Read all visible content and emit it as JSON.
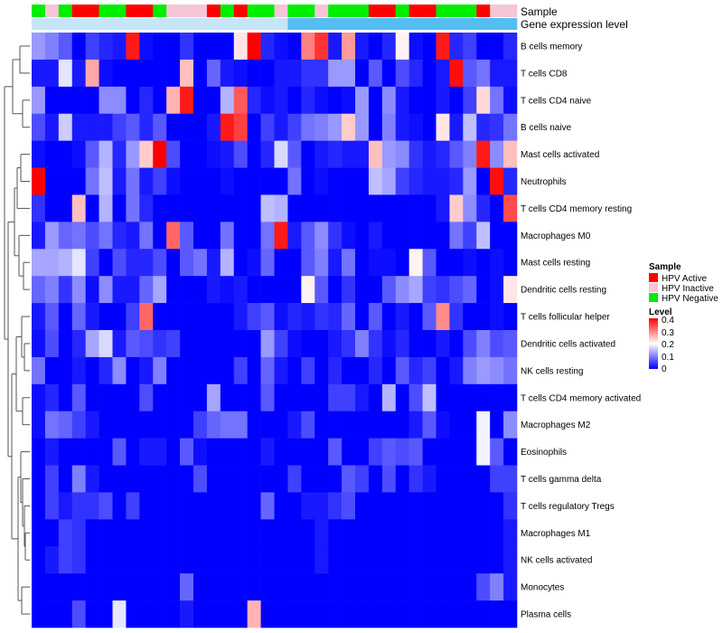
{
  "chart_data": {
    "type": "heatmap",
    "title": "",
    "colorscale": {
      "low": "#0000ff",
      "mid": "#ffffff",
      "high": "#ff0000",
      "min": 0,
      "mid_value": 0.2,
      "max": 0.4
    },
    "annotation_tracks": [
      {
        "name": "Sample"
      },
      {
        "name": "Gene expression level"
      }
    ],
    "sample_legend": {
      "title": "Sample",
      "items": [
        {
          "label": "HPV Active",
          "color": "#ff0000"
        },
        {
          "label": "HPV Inactive",
          "color": "#f5c6d6"
        },
        {
          "label": "HPV Negative",
          "color": "#00ee00"
        }
      ]
    },
    "level_legend": {
      "title": "Level",
      "ticks": [
        0.4,
        0.3,
        0.2,
        0.1,
        0
      ]
    },
    "sample_groups": [
      "N",
      "I",
      "N",
      "A",
      "A",
      "N",
      "N",
      "A",
      "A",
      "N",
      "I",
      "I",
      "I",
      "A",
      "N",
      "A",
      "N",
      "N",
      "I",
      "N",
      "N",
      "I",
      "N",
      "N",
      "N",
      "A",
      "A",
      "N",
      "A",
      "A",
      "N",
      "N",
      "N",
      "A",
      "I",
      "I"
    ],
    "expression_levels": [
      0,
      0,
      0,
      0,
      0,
      0,
      0,
      0,
      0,
      0,
      0,
      0,
      0,
      0,
      0,
      0,
      0,
      0,
      0,
      1,
      1,
      1,
      1,
      1,
      1,
      1,
      1,
      1,
      1,
      1,
      1,
      1,
      1,
      1,
      1,
      1
    ],
    "rows": [
      "B cells memory",
      "T cells CD8",
      "T cells CD4 naive",
      "B cells naive",
      "Mast cells activated",
      "Neutrophils",
      "T cells CD4 memory resting",
      "Macrophages M0",
      "Mast cells resting",
      "Dendritic cells resting",
      "T cells follicular helper",
      "Dendritic cells activated",
      "NK cells resting",
      "T cells CD4 memory activated",
      "Macrophages M2",
      "Eosinophils",
      "T cells gamma delta",
      "T cells regulatory  Tregs",
      "Macrophages M1",
      "NK cells activated",
      "Monocytes",
      "Plasma cells"
    ],
    "values": [
      [
        0.12,
        0.1,
        0.07,
        0.0,
        0.05,
        0.03,
        0.02,
        0.38,
        0.01,
        0.0,
        0.0,
        0.04,
        0.0,
        0.0,
        0.0,
        0.22,
        0.4,
        0.03,
        0.01,
        0.0,
        0.3,
        0.36,
        0.02,
        0.28,
        0.02,
        0.0,
        0.03,
        0.21,
        0.01,
        0.0,
        0.38,
        0.03,
        0.05,
        0.0,
        0.0,
        0.03
      ],
      [
        0.02,
        0.02,
        0.18,
        0.02,
        0.27,
        0.01,
        0.0,
        0.0,
        0.0,
        0.0,
        0.0,
        0.25,
        0.0,
        0.08,
        0.02,
        0.01,
        0.0,
        0.0,
        0.02,
        0.02,
        0.04,
        0.04,
        0.12,
        0.12,
        0.0,
        0.07,
        0.0,
        0.06,
        0.03,
        0.0,
        0.02,
        0.39,
        0.07,
        0.09,
        0.02,
        0.02
      ],
      [
        0.12,
        0.0,
        0.0,
        0.0,
        0.0,
        0.11,
        0.11,
        0.0,
        0.03,
        0.0,
        0.26,
        0.38,
        0.0,
        0.0,
        0.14,
        0.33,
        0.03,
        0.01,
        0.02,
        0.0,
        0.03,
        0.01,
        0.0,
        0.01,
        0.12,
        0.0,
        0.11,
        0.02,
        0.0,
        0.0,
        0.02,
        0.0,
        0.05,
        0.23,
        0.09,
        0.01
      ],
      [
        0.06,
        0.02,
        0.16,
        0.02,
        0.02,
        0.02,
        0.05,
        0.07,
        0.03,
        0.07,
        0.0,
        0.0,
        0.0,
        0.02,
        0.38,
        0.35,
        0.0,
        0.05,
        0.02,
        0.05,
        0.09,
        0.1,
        0.12,
        0.24,
        0.12,
        0.0,
        0.1,
        0.02,
        0.01,
        0.0,
        0.22,
        0.02,
        0.15,
        0.03,
        0.04,
        0.09
      ],
      [
        0.01,
        0.0,
        0.0,
        0.01,
        0.07,
        0.14,
        0.03,
        0.12,
        0.24,
        0.4,
        0.06,
        0.0,
        0.0,
        0.01,
        0.02,
        0.06,
        0.0,
        0.03,
        0.17,
        0.07,
        0.0,
        0.02,
        0.03,
        0.02,
        0.02,
        0.25,
        0.12,
        0.11,
        0.04,
        0.02,
        0.03,
        0.07,
        0.1,
        0.38,
        0.11,
        0.25
      ],
      [
        0.4,
        0.0,
        0.0,
        0.0,
        0.09,
        0.15,
        0.02,
        0.09,
        0.02,
        0.05,
        0.01,
        0.0,
        0.0,
        0.0,
        0.01,
        0.0,
        0.0,
        0.0,
        0.0,
        0.09,
        0.0,
        0.01,
        0.0,
        0.0,
        0.0,
        0.15,
        0.13,
        0.05,
        0.03,
        0.02,
        0.02,
        0.03,
        0.12,
        0.0,
        0.39,
        0.03
      ],
      [
        0.04,
        0.0,
        0.0,
        0.25,
        0.0,
        0.14,
        0.0,
        0.09,
        0.03,
        0.0,
        0.0,
        0.0,
        0.0,
        0.0,
        0.0,
        0.0,
        0.0,
        0.15,
        0.14,
        0.0,
        0.0,
        0.0,
        0.0,
        0.0,
        0.0,
        0.0,
        0.0,
        0.0,
        0.0,
        0.0,
        0.02,
        0.24,
        0.11,
        0.03,
        0.0,
        0.34
      ],
      [
        0.02,
        0.12,
        0.08,
        0.09,
        0.06,
        0.09,
        0.03,
        0.02,
        0.09,
        0.0,
        0.32,
        0.07,
        0.0,
        0.0,
        0.09,
        0.0,
        0.0,
        0.09,
        0.38,
        0.02,
        0.07,
        0.11,
        0.04,
        0.01,
        0.0,
        0.02,
        0.0,
        0.0,
        0.0,
        0.0,
        0.0,
        0.09,
        0.05,
        0.15,
        0.0,
        0.0
      ],
      [
        0.13,
        0.13,
        0.14,
        0.18,
        0.05,
        0.0,
        0.06,
        0.03,
        0.03,
        0.06,
        0.0,
        0.07,
        0.09,
        0.02,
        0.14,
        0.0,
        0.01,
        0.08,
        0.0,
        0.0,
        0.07,
        0.1,
        0.02,
        0.09,
        0.0,
        0.01,
        0.01,
        0.0,
        0.21,
        0.07,
        0.0,
        0.0,
        0.01,
        0.0,
        0.01,
        0.0
      ],
      [
        0.08,
        0.1,
        0.04,
        0.11,
        0.01,
        0.11,
        0.02,
        0.02,
        0.08,
        0.13,
        0.0,
        0.0,
        0.0,
        0.02,
        0.01,
        0.02,
        0.0,
        0.0,
        0.0,
        0.0,
        0.21,
        0.07,
        0.0,
        0.04,
        0.0,
        0.0,
        0.07,
        0.11,
        0.13,
        0.05,
        0.04,
        0.06,
        0.08,
        0.0,
        0.01,
        0.22
      ],
      [
        0.02,
        0.07,
        0.0,
        0.08,
        0.02,
        0.0,
        0.0,
        0.05,
        0.32,
        0.0,
        0.0,
        0.0,
        0.0,
        0.0,
        0.0,
        0.02,
        0.05,
        0.07,
        0.01,
        0.03,
        0.02,
        0.04,
        0.03,
        0.08,
        0.0,
        0.07,
        0.0,
        0.02,
        0.0,
        0.07,
        0.29,
        0.04,
        0.0,
        0.0,
        0.01,
        0.0
      ],
      [
        0.01,
        0.06,
        0.0,
        0.03,
        0.13,
        0.17,
        0.02,
        0.07,
        0.06,
        0.04,
        0.05,
        0.0,
        0.0,
        0.0,
        0.0,
        0.0,
        0.0,
        0.12,
        0.05,
        0.01,
        0.0,
        0.0,
        0.02,
        0.04,
        0.1,
        0.04,
        0.01,
        0.03,
        0.0,
        0.0,
        0.02,
        0.0,
        0.06,
        0.1,
        0.06,
        0.07
      ],
      [
        0.09,
        0.0,
        0.0,
        0.02,
        0.0,
        0.03,
        0.11,
        0.0,
        0.02,
        0.1,
        0.0,
        0.0,
        0.0,
        0.0,
        0.0,
        0.05,
        0.0,
        0.08,
        0.02,
        0.0,
        0.05,
        0.0,
        0.03,
        0.0,
        0.0,
        0.03,
        0.0,
        0.07,
        0.03,
        0.05,
        0.0,
        0.02,
        0.1,
        0.12,
        0.11,
        0.09
      ],
      [
        0.01,
        0.03,
        0.0,
        0.07,
        0.0,
        0.0,
        0.0,
        0.0,
        0.06,
        0.0,
        0.0,
        0.0,
        0.0,
        0.13,
        0.0,
        0.0,
        0.0,
        0.07,
        0.0,
        0.0,
        0.0,
        0.0,
        0.05,
        0.05,
        0.02,
        0.0,
        0.14,
        0.0,
        0.06,
        0.15,
        0.0,
        0.0,
        0.0,
        0.0,
        0.0,
        0.0
      ],
      [
        0.01,
        0.09,
        0.08,
        0.05,
        0.02,
        0.0,
        0.0,
        0.0,
        0.0,
        0.0,
        0.0,
        0.0,
        0.05,
        0.08,
        0.09,
        0.09,
        0.0,
        0.0,
        0.0,
        0.02,
        0.06,
        0.0,
        0.0,
        0.0,
        0.0,
        0.0,
        0.0,
        0.0,
        0.02,
        0.07,
        0.01,
        0.0,
        0.0,
        0.19,
        0.0,
        0.11
      ],
      [
        0.0,
        0.02,
        0.0,
        0.0,
        0.0,
        0.0,
        0.07,
        0.0,
        0.02,
        0.02,
        0.0,
        0.07,
        0.01,
        0.0,
        0.0,
        0.0,
        0.0,
        0.02,
        0.0,
        0.0,
        0.0,
        0.0,
        0.07,
        0.0,
        0.0,
        0.05,
        0.07,
        0.06,
        0.07,
        0.0,
        0.0,
        0.0,
        0.0,
        0.19,
        0.07,
        0.0
      ],
      [
        0.0,
        0.05,
        0.0,
        0.1,
        0.02,
        0.0,
        0.0,
        0.0,
        0.0,
        0.0,
        0.0,
        0.0,
        0.06,
        0.0,
        0.0,
        0.0,
        0.0,
        0.0,
        0.0,
        0.05,
        0.0,
        0.0,
        0.0,
        0.07,
        0.05,
        0.0,
        0.06,
        0.0,
        0.04,
        0.02,
        0.0,
        0.0,
        0.0,
        0.0,
        0.05,
        0.05
      ],
      [
        0.0,
        0.05,
        0.02,
        0.04,
        0.04,
        0.06,
        0.0,
        0.05,
        0.0,
        0.0,
        0.0,
        0.0,
        0.0,
        0.0,
        0.0,
        0.0,
        0.0,
        0.08,
        0.0,
        0.0,
        0.02,
        0.02,
        0.04,
        0.06,
        0.0,
        0.0,
        0.0,
        0.0,
        0.0,
        0.0,
        0.0,
        0.0,
        0.0,
        0.0,
        0.0,
        0.04
      ],
      [
        0.0,
        0.0,
        0.05,
        0.04,
        0.0,
        0.0,
        0.0,
        0.0,
        0.0,
        0.0,
        0.0,
        0.0,
        0.0,
        0.0,
        0.0,
        0.0,
        0.0,
        0.0,
        0.0,
        0.0,
        0.0,
        0.02,
        0.0,
        0.0,
        0.0,
        0.0,
        0.0,
        0.0,
        0.0,
        0.0,
        0.0,
        0.0,
        0.0,
        0.0,
        0.0,
        0.02
      ],
      [
        0.0,
        0.02,
        0.05,
        0.04,
        0.0,
        0.0,
        0.0,
        0.0,
        0.0,
        0.0,
        0.0,
        0.0,
        0.0,
        0.0,
        0.0,
        0.0,
        0.0,
        0.0,
        0.0,
        0.0,
        0.0,
        0.02,
        0.0,
        0.0,
        0.0,
        0.0,
        0.0,
        0.0,
        0.0,
        0.0,
        0.0,
        0.0,
        0.0,
        0.0,
        0.0,
        0.02
      ],
      [
        0.0,
        0.0,
        0.0,
        0.0,
        0.0,
        0.0,
        0.0,
        0.0,
        0.0,
        0.0,
        0.0,
        0.08,
        0.0,
        0.0,
        0.0,
        0.0,
        0.0,
        0.0,
        0.0,
        0.0,
        0.0,
        0.0,
        0.0,
        0.0,
        0.0,
        0.0,
        0.0,
        0.0,
        0.0,
        0.0,
        0.0,
        0.0,
        0.0,
        0.06,
        0.1,
        0.02
      ],
      [
        0.0,
        0.0,
        0.0,
        0.06,
        0.0,
        0.0,
        0.18,
        0.0,
        0.0,
        0.0,
        0.0,
        0.02,
        0.0,
        0.0,
        0.0,
        0.0,
        0.26,
        0.0,
        0.0,
        0.0,
        0.0,
        0.0,
        0.0,
        0.0,
        0.0,
        0.0,
        0.0,
        0.0,
        0.0,
        0.0,
        0.0,
        0.0,
        0.0,
        0.0,
        0.0,
        0.0
      ]
    ]
  }
}
